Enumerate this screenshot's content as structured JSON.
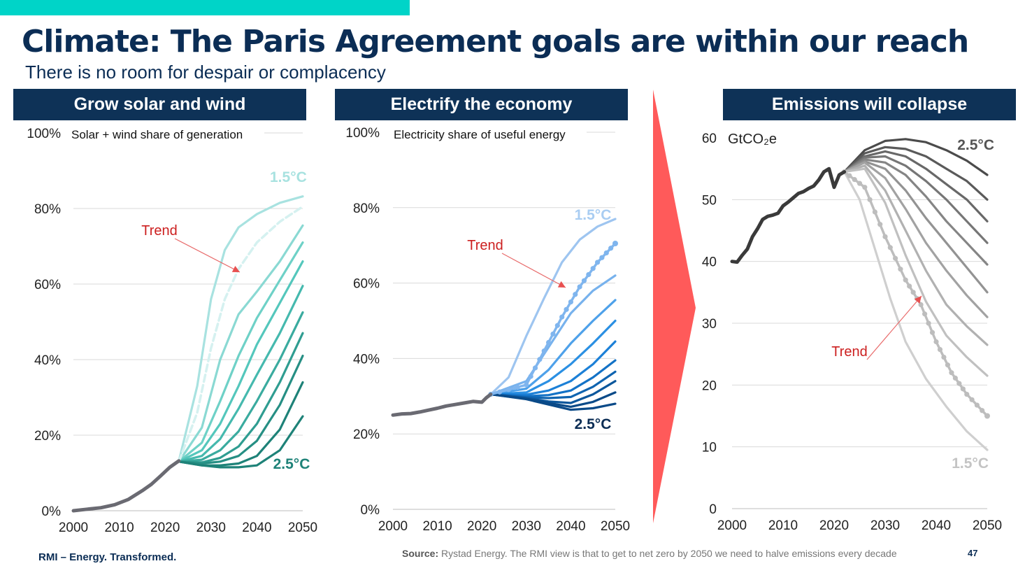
{
  "header": {
    "title": "Climate: The Paris Agreement goals are within our reach",
    "subtitle": "There is no room for despair or complacency"
  },
  "colors": {
    "accent": "#00d4c8",
    "navy": "#0e3257",
    "trend_label": "#cc1f1f",
    "arrow": "#ff5a5a",
    "panel1": [
      "#a8e2e0",
      "#8ad9d3",
      "#6ed1c7",
      "#54c7bc",
      "#45b9ae",
      "#3aab9f",
      "#2f9d91",
      "#268f84",
      "#1e8278"
    ],
    "panel2": [
      "#9ec5f0",
      "#77b2ed",
      "#4ea1ea",
      "#2b90e3",
      "#1c80d7",
      "#1372c6",
      "#0f64b0",
      "#0c579c",
      "#0a4a88"
    ],
    "panel3": [
      "#4b4b4b",
      "#5a5a5a",
      "#686868",
      "#767676",
      "#858585",
      "#939393",
      "#a2a2a2",
      "#b1b1b1",
      "#c0c0c0"
    ]
  },
  "panels": [
    {
      "header": "Grow solar and wind"
    },
    {
      "header": "Electrify the economy"
    },
    {
      "header": "Emissions will collapse"
    }
  ],
  "footer": {
    "org": "RMI – Energy. Transformed.",
    "source_label": "Source:",
    "source_text": " Rystad Energy. The RMI view is that to get to net zero by 2050 we need to halve emissions every decade",
    "page": "47"
  },
  "chart_data": [
    {
      "type": "line",
      "title": "Solar + wind share of generation",
      "ylim": [
        0,
        100
      ],
      "yticks": [
        "0%",
        "20%",
        "40%",
        "60%",
        "80%",
        "100%"
      ],
      "ytick_values": [
        0,
        20,
        40,
        60,
        80,
        100
      ],
      "xlim": [
        2000,
        2050
      ],
      "xticks": [
        "2000",
        "2010",
        "2020",
        "2030",
        "2040",
        "2050"
      ],
      "xtick_values": [
        2000,
        2010,
        2020,
        2030,
        2040,
        2050
      ],
      "annotations": {
        "top": "1.5°C",
        "bottom": "2.5°C",
        "trend": "Trend"
      },
      "history": {
        "x": [
          2000,
          2003,
          2006,
          2009,
          2012,
          2015,
          2017,
          2019,
          2021,
          2023
        ],
        "y": [
          0,
          0.4,
          0.8,
          1.6,
          3.0,
          5.3,
          7.0,
          9.2,
          11.5,
          13.2
        ]
      },
      "scenarios": [
        {
          "x": [
            2023,
            2027,
            2030,
            2033,
            2036,
            2040,
            2045,
            2050
          ],
          "y": [
            13.2,
            33,
            56,
            69,
            75,
            78.5,
            81.5,
            83.2
          ]
        },
        {
          "x": [
            2023,
            2028,
            2032,
            2036,
            2040,
            2045,
            2050
          ],
          "y": [
            13,
            22,
            40,
            52,
            58,
            66,
            75.5
          ]
        },
        {
          "x": [
            2023,
            2028,
            2032,
            2036,
            2040,
            2045,
            2050
          ],
          "y": [
            13,
            18,
            29,
            41,
            51,
            61,
            71
          ]
        },
        {
          "x": [
            2023,
            2028,
            2032,
            2036,
            2040,
            2045,
            2050
          ],
          "y": [
            13,
            16,
            23,
            33,
            44,
            55,
            66
          ]
        },
        {
          "x": [
            2023,
            2028,
            2032,
            2036,
            2040,
            2045,
            2050
          ],
          "y": [
            13,
            14.5,
            19,
            27,
            36,
            47,
            59.5
          ]
        },
        {
          "x": [
            2023,
            2028,
            2032,
            2036,
            2040,
            2045,
            2050
          ],
          "y": [
            13,
            13.5,
            16,
            21,
            29,
            40,
            52.5
          ]
        },
        {
          "x": [
            2023,
            2028,
            2032,
            2036,
            2040,
            2045,
            2050
          ],
          "y": [
            13,
            12.8,
            14,
            17,
            23,
            34,
            47
          ]
        },
        {
          "x": [
            2023,
            2028,
            2032,
            2036,
            2040,
            2045,
            2050
          ],
          "y": [
            13,
            12.5,
            13,
            14.5,
            18.5,
            28,
            41
          ]
        },
        {
          "x": [
            2023,
            2028,
            2032,
            2036,
            2040,
            2045,
            2050
          ],
          "y": [
            13,
            12,
            12,
            12.5,
            14.5,
            21.5,
            34
          ]
        },
        {
          "x": [
            2023,
            2028,
            2032,
            2036,
            2040,
            2045,
            2050
          ],
          "y": [
            13,
            12,
            11.5,
            11.5,
            12,
            16,
            25
          ]
        }
      ],
      "trend": {
        "x": [
          2023,
          2027,
          2030,
          2033,
          2036,
          2040,
          2045,
          2050
        ],
        "y": [
          13,
          26,
          43,
          56,
          64,
          71,
          76.5,
          80.5
        ]
      }
    },
    {
      "type": "line",
      "title": "Electricity share of useful energy",
      "ylim": [
        0,
        100
      ],
      "yticks": [
        "0%",
        "20%",
        "40%",
        "60%",
        "80%",
        "100%"
      ],
      "ytick_values": [
        0,
        20,
        40,
        60,
        80,
        100
      ],
      "xlim": [
        2000,
        2050
      ],
      "xticks": [
        "2000",
        "2010",
        "2020",
        "2030",
        "2040",
        "2050"
      ],
      "xtick_values": [
        2000,
        2010,
        2020,
        2030,
        2040,
        2050
      ],
      "annotations": {
        "top": "1.5°C",
        "bottom": "2.5°C",
        "trend": "Trend"
      },
      "history": {
        "x": [
          2000,
          2002,
          2004,
          2006,
          2008,
          2010,
          2012,
          2014,
          2016,
          2018,
          2020,
          2021,
          2022
        ],
        "y": [
          25,
          25.3,
          25.4,
          25.8,
          26.3,
          26.8,
          27.4,
          27.8,
          28.2,
          28.6,
          28.4,
          29.6,
          30.5
        ]
      },
      "scenarios": [
        {
          "x": [
            2022,
            2026,
            2030,
            2034,
            2038,
            2042,
            2046,
            2050
          ],
          "y": [
            30.5,
            35,
            46,
            56,
            65.5,
            71.5,
            75,
            77
          ]
        },
        {
          "x": [
            2022,
            2030,
            2035,
            2040,
            2045,
            2050
          ],
          "y": [
            30.5,
            34,
            43,
            52,
            58,
            62
          ]
        },
        {
          "x": [
            2022,
            2030,
            2035,
            2040,
            2045,
            2050
          ],
          "y": [
            30.5,
            32,
            37,
            44,
            50,
            55.5
          ]
        },
        {
          "x": [
            2022,
            2030,
            2035,
            2040,
            2045,
            2050
          ],
          "y": [
            30.5,
            31,
            34,
            38.5,
            44,
            50
          ]
        },
        {
          "x": [
            2022,
            2030,
            2035,
            2040,
            2045,
            2050
          ],
          "y": [
            30.5,
            30.4,
            31.5,
            34,
            38.5,
            44.5
          ]
        },
        {
          "x": [
            2022,
            2030,
            2035,
            2040,
            2045,
            2050
          ],
          "y": [
            30.5,
            30,
            30.3,
            31.5,
            35,
            39.5
          ]
        },
        {
          "x": [
            2022,
            2030,
            2035,
            2040,
            2045,
            2050
          ],
          "y": [
            30.5,
            29.7,
            29.5,
            29.8,
            32.5,
            36.5
          ]
        },
        {
          "x": [
            2022,
            2030,
            2035,
            2040,
            2045,
            2050
          ],
          "y": [
            30.5,
            29.5,
            28.6,
            28.2,
            30.5,
            34
          ]
        },
        {
          "x": [
            2022,
            2030,
            2035,
            2040,
            2045,
            2050
          ],
          "y": [
            30.5,
            29.3,
            28.2,
            27.2,
            28.5,
            31
          ]
        },
        {
          "x": [
            2022,
            2030,
            2035,
            2040,
            2045,
            2050
          ],
          "y": [
            30.5,
            29.2,
            27.8,
            26.4,
            26.8,
            28
          ]
        }
      ],
      "trend": {
        "x": [
          2022,
          2030,
          2034,
          2038,
          2042,
          2046,
          2050
        ],
        "y": [
          30.5,
          33,
          42,
          51,
          59,
          65.5,
          70.5
        ]
      }
    },
    {
      "type": "line",
      "title": "GtCO₂e",
      "ylim": [
        0,
        60
      ],
      "yticks": [
        "0",
        "10",
        "20",
        "30",
        "40",
        "50",
        "60"
      ],
      "ytick_values": [
        0,
        10,
        20,
        30,
        40,
        50,
        60
      ],
      "xlim": [
        2000,
        2050
      ],
      "xticks": [
        "2000",
        "2010",
        "2020",
        "2030",
        "2040",
        "2050"
      ],
      "xtick_values": [
        2000,
        2010,
        2020,
        2030,
        2040,
        2050
      ],
      "annotations": {
        "top": "2.5°C",
        "bottom": "1.5°C",
        "trend": "Trend"
      },
      "history": {
        "x": [
          2000,
          2001,
          2002,
          2003,
          2004,
          2005,
          2006,
          2007,
          2008,
          2009,
          2010,
          2011,
          2012,
          2013,
          2014,
          2015,
          2016,
          2017,
          2018,
          2019,
          2020,
          2021,
          2022
        ],
        "y": [
          40,
          39.9,
          41,
          42,
          44,
          45.3,
          46.8,
          47.3,
          47.5,
          47.8,
          49,
          49.6,
          50.3,
          51,
          51.3,
          51.8,
          52.2,
          53.2,
          54.5,
          55,
          52,
          54,
          54.5
        ]
      },
      "scenarios": [
        {
          "x": [
            2022,
            2026,
            2030,
            2034,
            2038,
            2042,
            2046,
            2050
          ],
          "y": [
            54.5,
            58,
            59.5,
            59.8,
            59.3,
            58,
            56.3,
            54
          ]
        },
        {
          "x": [
            2022,
            2026,
            2030,
            2034,
            2038,
            2042,
            2046,
            2050
          ],
          "y": [
            54.5,
            57.5,
            58.5,
            58.2,
            57,
            55,
            53,
            50
          ]
        },
        {
          "x": [
            2022,
            2026,
            2030,
            2034,
            2038,
            2042,
            2046,
            2050
          ],
          "y": [
            54.5,
            57,
            57.8,
            57,
            55,
            52.5,
            50,
            46.5
          ]
        },
        {
          "x": [
            2022,
            2026,
            2030,
            2034,
            2038,
            2042,
            2046,
            2050
          ],
          "y": [
            54.5,
            56.8,
            57,
            55.5,
            53,
            50,
            46.5,
            43
          ]
        },
        {
          "x": [
            2022,
            2026,
            2030,
            2034,
            2038,
            2042,
            2046,
            2050
          ],
          "y": [
            54.5,
            56.5,
            56,
            54,
            50.5,
            46.5,
            43,
            39.5
          ]
        },
        {
          "x": [
            2022,
            2026,
            2030,
            2034,
            2038,
            2042,
            2046,
            2050
          ],
          "y": [
            54.5,
            56.2,
            55,
            51.5,
            47,
            43,
            39,
            35
          ]
        },
        {
          "x": [
            2022,
            2026,
            2030,
            2034,
            2038,
            2042,
            2046,
            2050
          ],
          "y": [
            54.5,
            56,
            53.5,
            48.5,
            43,
            38.5,
            34.5,
            31
          ]
        },
        {
          "x": [
            2022,
            2026,
            2030,
            2034,
            2038,
            2042,
            2046,
            2050
          ],
          "y": [
            54.5,
            55.5,
            51.5,
            45,
            38.5,
            33,
            29.5,
            26.5
          ]
        },
        {
          "x": [
            2022,
            2026,
            2030,
            2034,
            2038,
            2042,
            2046,
            2050
          ],
          "y": [
            54.5,
            55,
            49.5,
            41,
            33.5,
            28,
            24.5,
            21.5
          ]
        },
        {
          "x": [
            2022,
            2025,
            2028,
            2031,
            2034,
            2038,
            2042,
            2046,
            2050
          ],
          "y": [
            54.5,
            50,
            42,
            34,
            27,
            21,
            16.5,
            12.5,
            9.5
          ]
        }
      ],
      "trend": {
        "x": [
          2022,
          2026,
          2030,
          2034,
          2037,
          2040,
          2043,
          2046,
          2050
        ],
        "y": [
          54.5,
          52,
          44,
          37,
          33,
          27,
          22,
          18.5,
          15
        ]
      }
    }
  ]
}
